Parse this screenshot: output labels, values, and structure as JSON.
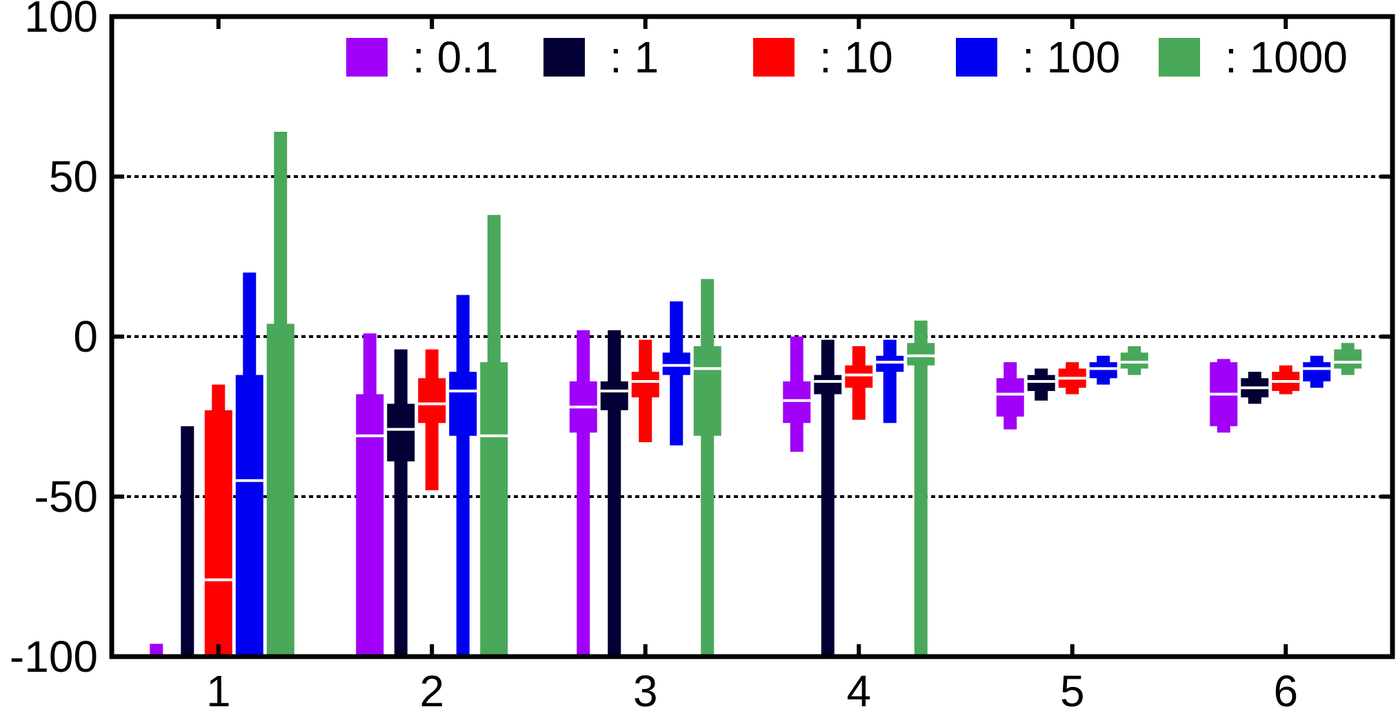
{
  "chart_data": {
    "type": "boxplot",
    "title": "",
    "xlabel": "",
    "ylabel": "",
    "ylim": [
      -100,
      100
    ],
    "yticks": [
      -100,
      -50,
      0,
      50,
      100
    ],
    "grid": "dotted-horizontal",
    "legend_placement": "top",
    "categories": [
      "1",
      "2",
      "3",
      "4",
      "5",
      "6"
    ],
    "series": [
      {
        "name": ": 0.1",
        "color": "#a000f8",
        "boxes": [
          {
            "whisker_low": -100,
            "q1": -100,
            "median": -100,
            "q3": -100,
            "whisker_high": -96
          },
          {
            "whisker_low": -100,
            "q1": -100,
            "median": -31,
            "q3": -18,
            "whisker_high": 1
          },
          {
            "whisker_low": -100,
            "q1": -30,
            "median": -22,
            "q3": -14,
            "whisker_high": 2
          },
          {
            "whisker_low": -36,
            "q1": -27,
            "median": -20,
            "q3": -14,
            "whisker_high": 0
          },
          {
            "whisker_low": -29,
            "q1": -25,
            "median": -18,
            "q3": -13,
            "whisker_high": -8
          },
          {
            "whisker_low": -30,
            "q1": -28,
            "median": -18,
            "q3": -8,
            "whisker_high": -7
          }
        ]
      },
      {
        "name": ": 1",
        "color": "#020034",
        "boxes": [
          {
            "whisker_low": -100,
            "q1": -100,
            "median": -100,
            "q3": -100,
            "whisker_high": -28
          },
          {
            "whisker_low": -100,
            "q1": -39,
            "median": -29,
            "q3": -21,
            "whisker_high": -4
          },
          {
            "whisker_low": -100,
            "q1": -23,
            "median": -17,
            "q3": -14,
            "whisker_high": 2
          },
          {
            "whisker_low": -100,
            "q1": -18,
            "median": -14,
            "q3": -12,
            "whisker_high": -1
          },
          {
            "whisker_low": -20,
            "q1": -17,
            "median": -14,
            "q3": -12,
            "whisker_high": -10
          },
          {
            "whisker_low": -21,
            "q1": -19,
            "median": -16,
            "q3": -13,
            "whisker_high": -11
          }
        ]
      },
      {
        "name": ": 10",
        "color": "#ff0000",
        "boxes": [
          {
            "whisker_low": -100,
            "q1": -100,
            "median": -76,
            "q3": -23,
            "whisker_high": -15
          },
          {
            "whisker_low": -48,
            "q1": -27,
            "median": -21,
            "q3": -13,
            "whisker_high": -4
          },
          {
            "whisker_low": -33,
            "q1": -19,
            "median": -14,
            "q3": -11,
            "whisker_high": -1
          },
          {
            "whisker_low": -26,
            "q1": -16,
            "median": -12,
            "q3": -9,
            "whisker_high": -3
          },
          {
            "whisker_low": -18,
            "q1": -16,
            "median": -13,
            "q3": -10,
            "whisker_high": -8
          },
          {
            "whisker_low": -18,
            "q1": -17,
            "median": -14,
            "q3": -11,
            "whisker_high": -9
          }
        ]
      },
      {
        "name": ": 100",
        "color": "#0000f0",
        "boxes": [
          {
            "whisker_low": -100,
            "q1": -100,
            "median": -45,
            "q3": -12,
            "whisker_high": 20
          },
          {
            "whisker_low": -100,
            "q1": -31,
            "median": -17,
            "q3": -11,
            "whisker_high": 13
          },
          {
            "whisker_low": -34,
            "q1": -12,
            "median": -9,
            "q3": -5,
            "whisker_high": 11
          },
          {
            "whisker_low": -27,
            "q1": -11,
            "median": -8,
            "q3": -6,
            "whisker_high": -1
          },
          {
            "whisker_low": -15,
            "q1": -13,
            "median": -10,
            "q3": -8,
            "whisker_high": -6
          },
          {
            "whisker_low": -16,
            "q1": -14,
            "median": -10,
            "q3": -8,
            "whisker_high": -6
          }
        ]
      },
      {
        "name": ": 1000",
        "color": "#4aa85a",
        "boxes": [
          {
            "whisker_low": -100,
            "q1": -100,
            "median": -100,
            "q3": 4,
            "whisker_high": 64
          },
          {
            "whisker_low": -100,
            "q1": -100,
            "median": -31,
            "q3": -8,
            "whisker_high": 38
          },
          {
            "whisker_low": -100,
            "q1": -31,
            "median": -10,
            "q3": -3,
            "whisker_high": 18
          },
          {
            "whisker_low": -100,
            "q1": -9,
            "median": -6,
            "q3": -2,
            "whisker_high": 5
          },
          {
            "whisker_low": -12,
            "q1": -10,
            "median": -8,
            "q3": -5,
            "whisker_high": -3
          },
          {
            "whisker_low": -12,
            "q1": -10,
            "median": -8,
            "q3": -4,
            "whisker_high": -2
          }
        ]
      }
    ]
  }
}
